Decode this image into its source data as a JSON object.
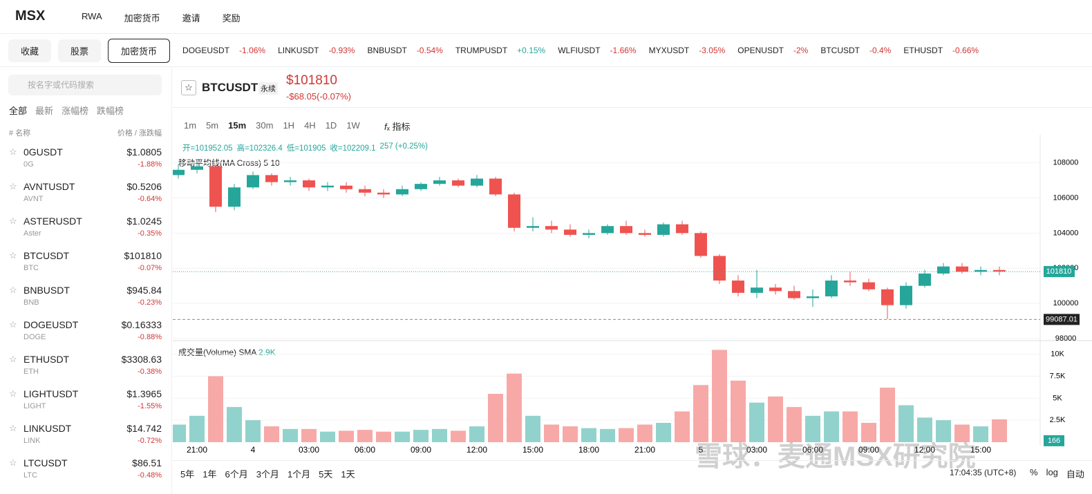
{
  "nav": {
    "logo": "MSX",
    "items": [
      "RWA",
      "加密货币",
      "邀请",
      "奖励"
    ]
  },
  "tabs": [
    "收藏",
    "股票",
    "加密货币"
  ],
  "ticker_strip": [
    {
      "name": "DOGEUSDT",
      "change": "-1.06%"
    },
    {
      "name": "LINKUSDT",
      "change": "-0.93%"
    },
    {
      "name": "BNBUSDT",
      "change": "-0.54%"
    },
    {
      "name": "TRUMPUSDT",
      "change": "+0.15%"
    },
    {
      "name": "WLFIUSDT",
      "change": "-1.66%"
    },
    {
      "name": "MYXUSDT",
      "change": "-3.05%"
    },
    {
      "name": "OPENUSDT",
      "change": "-2%"
    },
    {
      "name": "BTCUSDT",
      "change": "-0.4%"
    },
    {
      "name": "ETHUSDT",
      "change": "-0.66%"
    }
  ],
  "search_placeholder": "按名字或代码搜索",
  "filters": [
    "全部",
    "最新",
    "涨幅榜",
    "跌幅榜"
  ],
  "list_header": {
    "name": "# 名称",
    "price": "价格 / 涨跌幅"
  },
  "list": [
    {
      "symbol": "0GUSDT",
      "base": "0G",
      "price": "$1.0805",
      "change": "-1.88%"
    },
    {
      "symbol": "AVNTUSDT",
      "base": "AVNT",
      "price": "$0.5206",
      "change": "-0.64%"
    },
    {
      "symbol": "ASTERUSDT",
      "base": "Aster",
      "price": "$1.0245",
      "change": "-0.35%"
    },
    {
      "symbol": "BTCUSDT",
      "base": "BTC",
      "price": "$101810",
      "change": "-0.07%"
    },
    {
      "symbol": "BNBUSDT",
      "base": "BNB",
      "price": "$945.84",
      "change": "-0.23%"
    },
    {
      "symbol": "DOGEUSDT",
      "base": "DOGE",
      "price": "$0.16333",
      "change": "-0.88%"
    },
    {
      "symbol": "ETHUSDT",
      "base": "ETH",
      "price": "$3308.63",
      "change": "-0.38%"
    },
    {
      "symbol": "LIGHTUSDT",
      "base": "LIGHT",
      "price": "$1.3965",
      "change": "-1.55%"
    },
    {
      "symbol": "LINKUSDT",
      "base": "LINK",
      "price": "$14.742",
      "change": "-0.72%"
    },
    {
      "symbol": "LTCUSDT",
      "base": "LTC",
      "price": "$86.51",
      "change": "-0.48%"
    }
  ],
  "header": {
    "symbol": "BTCUSDT",
    "contract": "永续",
    "price": "$101810",
    "change": "-$68.05(-0.07%)"
  },
  "intervals": [
    "1m",
    "5m",
    "15m",
    "30m",
    "1H",
    "4H",
    "1D",
    "1W"
  ],
  "indicator_button": "指标",
  "ohlc_legend": [
    "开=101952.05",
    "高=102326.4",
    "低=101905",
    "收=102209.1",
    "257 (+0.25%)"
  ],
  "ma_label": "移动平均线(MA Cross) 5 10",
  "volume_label": "成交量(Volume) SMA",
  "volume_sma": "2.9K",
  "ranges": [
    "5年",
    "1年",
    "6个月",
    "3个月",
    "1个月",
    "5天",
    "1天"
  ],
  "clock": "17:04:35 (UTC+8)",
  "scale_buttons": [
    "%",
    "log",
    "自动"
  ],
  "watermark": "雪球：麦通MSX研究院",
  "chart_data": {
    "type": "candlestick",
    "categories": [
      null,
      "21:00",
      null,
      null,
      "4",
      null,
      null,
      "03:00",
      null,
      null,
      "06:00",
      null,
      null,
      "09:00",
      null,
      null,
      "12:00",
      null,
      null,
      "15:00",
      null,
      null,
      "18:00",
      null,
      null,
      "21:00",
      null,
      null,
      "5",
      null,
      null,
      "03:00",
      null,
      null,
      "06:00",
      null,
      null,
      "09:00",
      null,
      null,
      "12:00",
      null,
      null,
      "15:00",
      null
    ],
    "open": [
      107300,
      107600,
      107800,
      105500,
      106600,
      107300,
      106900,
      107000,
      106600,
      106700,
      106500,
      106300,
      106200,
      106500,
      106800,
      107000,
      106700,
      107100,
      106200,
      104300,
      104400,
      104200,
      103900,
      104000,
      104400,
      104000,
      103900,
      104500,
      104000,
      102700,
      101300,
      100600,
      100900,
      100700,
      100300,
      100400,
      101300,
      101200,
      100800,
      99900,
      101000,
      101700,
      102100,
      101800,
      101900
    ],
    "high": [
      107900,
      108100,
      107900,
      106800,
      107500,
      107400,
      107200,
      107100,
      106900,
      106900,
      106700,
      106500,
      106700,
      106900,
      107200,
      107100,
      107300,
      107200,
      106300,
      104900,
      104700,
      104500,
      104200,
      104500,
      104700,
      104200,
      104600,
      104700,
      104100,
      102800,
      101600,
      101900,
      101100,
      101000,
      100800,
      101600,
      101800,
      101400,
      100900,
      101200,
      101900,
      102300,
      102300,
      102100,
      102100
    ],
    "low": [
      107100,
      107400,
      105200,
      105300,
      106500,
      106700,
      106700,
      106400,
      106400,
      106300,
      106100,
      106000,
      106100,
      106400,
      106700,
      106600,
      106600,
      106100,
      104100,
      104100,
      104000,
      103800,
      103700,
      103900,
      103900,
      103800,
      103800,
      103900,
      102600,
      101100,
      100400,
      100300,
      100500,
      100200,
      99800,
      100300,
      101000,
      100700,
      99100,
      99700,
      100900,
      101600,
      101700,
      101600,
      101600
    ],
    "close": [
      107600,
      107800,
      105500,
      106600,
      107300,
      106900,
      107000,
      106600,
      106700,
      106500,
      106300,
      106200,
      106500,
      106800,
      107000,
      106700,
      107100,
      106200,
      104300,
      104400,
      104200,
      103900,
      104000,
      104400,
      104000,
      103900,
      104500,
      104000,
      102700,
      101300,
      100600,
      100900,
      100700,
      100300,
      100400,
      101300,
      101200,
      100800,
      99900,
      101000,
      101700,
      102100,
      101800,
      101900,
      101810
    ],
    "up_color": "#26a69a",
    "down_color": "#ef5350",
    "ylim": [
      98000,
      109400
    ],
    "yticks": [
      98000,
      100000,
      102000,
      104000,
      106000,
      108000
    ],
    "last_price": 101810,
    "low_marker": 99087.01,
    "volume": {
      "values": [
        2000,
        3000,
        7500,
        4000,
        2500,
        1800,
        1500,
        1500,
        1200,
        1300,
        1400,
        1200,
        1200,
        1400,
        1500,
        1300,
        1800,
        5500,
        7800,
        3000,
        2000,
        1800,
        1600,
        1500,
        1600,
        2000,
        2200,
        3500,
        6500,
        10500,
        7000,
        4500,
        5200,
        4000,
        3000,
        3500,
        3500,
        2200,
        6200,
        4200,
        2800,
        2500,
        2000,
        1800,
        2600
      ],
      "up_color": "#92d2cc",
      "down_color": "#f7a9a7",
      "ylim": [
        0,
        11000
      ],
      "yticks": [
        {
          "value": 2500,
          "label": "2.5K"
        },
        {
          "value": 5000,
          "label": "5K"
        },
        {
          "value": 7500,
          "label": "7.5K"
        },
        {
          "value": 10000,
          "label": "10K"
        }
      ],
      "last": 166
    }
  }
}
